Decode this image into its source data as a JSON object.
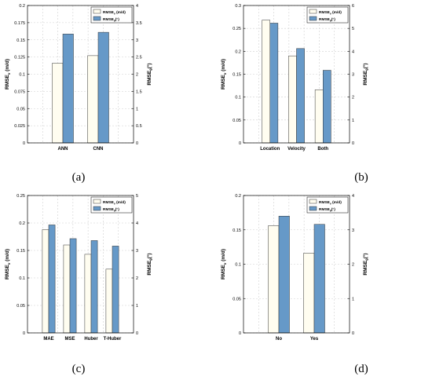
{
  "colors": {
    "bar_a": "#fffdf0",
    "bar_b": "#6699c8",
    "edge": "#333333",
    "grid": "#d0d0d0"
  },
  "chart_data": [
    {
      "type": "bar",
      "caption": "(a)",
      "categories": [
        "ANN",
        "CNN"
      ],
      "series": [
        {
          "name": "RMSE_v (m/d)",
          "axis": "left",
          "values": [
            0.116,
            0.127
          ]
        },
        {
          "name": "RMSE_θ(°)",
          "axis": "right",
          "values": [
            3.17,
            3.22
          ]
        }
      ],
      "ylabel": "RMSE_v (m/d)",
      "ylabel_right": "RMSE_θ(°)",
      "ylim": [
        0,
        0.2
      ],
      "yticks": [
        "0",
        "0.025",
        "0.05",
        "0.075",
        "0.1",
        "0.125",
        "0.15",
        "0.175",
        "0.2"
      ],
      "ylim_right": [
        0,
        4
      ],
      "yticks_right": [
        "0",
        "0.5",
        "1",
        "1.5",
        "2",
        "2.5",
        "3",
        "3.5",
        "4"
      ],
      "grid": true,
      "legend": "top-right"
    },
    {
      "type": "bar",
      "caption": "(b)",
      "categories": [
        "Location",
        "Velocity",
        "Both"
      ],
      "series": [
        {
          "name": "RMSE_v (m/d)",
          "axis": "left",
          "values": [
            0.268,
            0.19,
            0.116
          ]
        },
        {
          "name": "RMSE_θ(°)",
          "axis": "right",
          "values": [
            5.23,
            4.12,
            3.17
          ]
        }
      ],
      "ylabel": "RMSE_v (m/d)",
      "ylabel_right": "RMSE_θ(°)",
      "ylim": [
        0,
        0.3
      ],
      "yticks": [
        "0",
        "0.05",
        "0.1",
        "0.15",
        "0.2",
        "0.25",
        "0.3"
      ],
      "ylim_right": [
        0,
        6
      ],
      "yticks_right": [
        "0",
        "1",
        "2",
        "3",
        "4",
        "5",
        "6"
      ],
      "grid": true,
      "legend": "top-right"
    },
    {
      "type": "bar",
      "caption": "(c)",
      "categories": [
        "MAE",
        "MSE",
        "Huber",
        "T-Huber"
      ],
      "series": [
        {
          "name": "RMSE_v (m/d)",
          "axis": "left",
          "values": [
            0.188,
            0.16,
            0.143,
            0.116
          ]
        },
        {
          "name": "RMSE_θ(°)",
          "axis": "right",
          "values": [
            3.93,
            3.43,
            3.36,
            3.16
          ]
        }
      ],
      "ylabel": "RMSE_v (m/d)",
      "ylabel_right": "RMSE_θ(°)",
      "ylim": [
        0,
        0.25
      ],
      "yticks": [
        "0",
        "0.05",
        "0.1",
        "0.15",
        "0.2",
        "0.25"
      ],
      "ylim_right": [
        0,
        5
      ],
      "yticks_right": [
        "0",
        "1",
        "2",
        "3",
        "4",
        "5"
      ],
      "grid": true,
      "legend": "top-right"
    },
    {
      "type": "bar",
      "caption": "(d)",
      "categories": [
        "No",
        "Yes"
      ],
      "series": [
        {
          "name": "RMSE_v (m/d)",
          "axis": "left",
          "values": [
            0.156,
            0.116
          ]
        },
        {
          "name": "RMSE_θ(°)",
          "axis": "right",
          "values": [
            3.4,
            3.16
          ]
        }
      ],
      "ylabel": "RMSE_v (m/d)",
      "ylabel_right": "RMSE_θ(°)",
      "ylim": [
        0,
        0.2
      ],
      "yticks": [
        "0",
        "0.05",
        "0.1",
        "0.15",
        "0.2"
      ],
      "ylim_right": [
        0,
        4
      ],
      "yticks_right": [
        "0",
        "1",
        "2",
        "3",
        "4"
      ],
      "grid": true,
      "legend": "top-right"
    }
  ]
}
